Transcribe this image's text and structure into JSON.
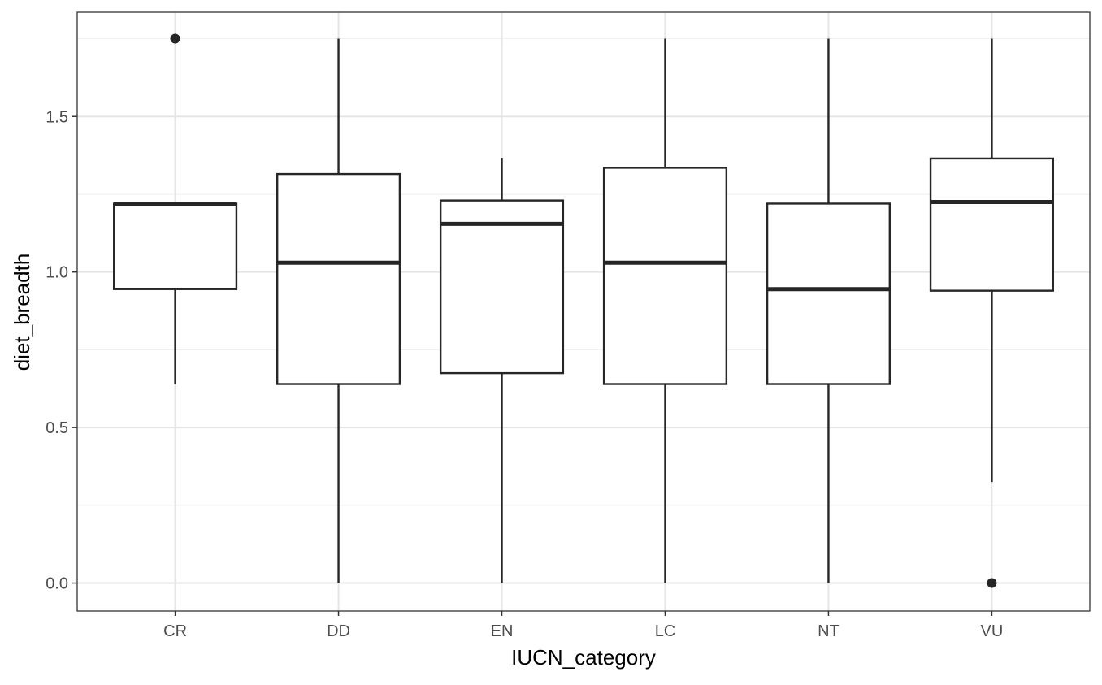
{
  "chart_data": {
    "type": "boxplot",
    "title": "",
    "xlabel": "IUCN_category",
    "ylabel": "diet_breadth",
    "ylim": [
      -0.09,
      1.835
    ],
    "yticks": [
      0.0,
      0.5,
      1.0,
      1.5
    ],
    "ytick_labels": [
      "0.0",
      "0.5",
      "1.0",
      "1.5"
    ],
    "minor_gridlines": [
      0.25,
      0.75,
      1.25,
      1.75
    ],
    "grid": true,
    "categories": [
      "CR",
      "DD",
      "EN",
      "LC",
      "NT",
      "VU"
    ],
    "boxes": [
      {
        "category": "CR",
        "whisker_low": 0.64,
        "q1": 0.945,
        "median": 1.22,
        "q3": 1.22,
        "whisker_high": 1.22,
        "outliers": [
          1.75
        ]
      },
      {
        "category": "DD",
        "whisker_low": 0.0,
        "q1": 0.64,
        "median": 1.03,
        "q3": 1.315,
        "whisker_high": 1.75,
        "outliers": []
      },
      {
        "category": "EN",
        "whisker_low": 0.0,
        "q1": 0.675,
        "median": 1.155,
        "q3": 1.23,
        "whisker_high": 1.365,
        "outliers": []
      },
      {
        "category": "LC",
        "whisker_low": 0.0,
        "q1": 0.64,
        "median": 1.03,
        "q3": 1.335,
        "whisker_high": 1.75,
        "outliers": []
      },
      {
        "category": "NT",
        "whisker_low": 0.0,
        "q1": 0.64,
        "median": 0.945,
        "q3": 1.22,
        "whisker_high": 1.75,
        "outliers": []
      },
      {
        "category": "VU",
        "whisker_low": 0.325,
        "q1": 0.94,
        "median": 1.225,
        "q3": 1.365,
        "whisker_high": 1.75,
        "outliers": [
          0.0
        ]
      }
    ],
    "colors": {
      "box_stroke": "#262626",
      "box_fill": "#ffffff",
      "grid_major": "#e5e5e5",
      "grid_minor": "#f0f0f0",
      "panel_border": "#333333",
      "tick_text": "#4d4d4d"
    }
  }
}
